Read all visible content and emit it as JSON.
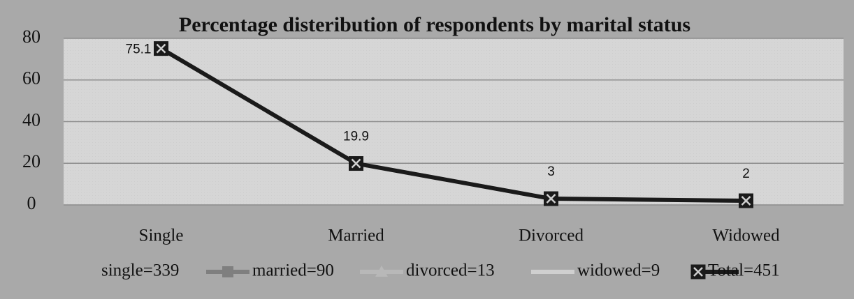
{
  "chart_data": {
    "type": "line",
    "title": "Percentage disteribution of respondents by marital status",
    "categories": [
      "Single",
      "Married",
      "Divorced",
      "Widowed"
    ],
    "series": [
      {
        "name": "single=339",
        "color": "#c8c8c8",
        "values": [
          null,
          null,
          null,
          null
        ]
      },
      {
        "name": "married=90",
        "color": "#7f7f7f",
        "values": [
          null,
          null,
          null,
          null
        ]
      },
      {
        "name": "divorced=13",
        "color": "#b8b8b8",
        "values": [
          null,
          null,
          null,
          null
        ]
      },
      {
        "name": "widowed=9",
        "color": "#cfcfcf",
        "values": [
          null,
          null,
          null,
          null
        ]
      },
      {
        "name": "Total=451",
        "color": "#1a1a1a",
        "values": [
          75.1,
          19.9,
          3,
          2
        ]
      }
    ],
    "ylim": [
      0,
      80
    ],
    "yticks": [
      0,
      20,
      40,
      60,
      80
    ],
    "grid": true,
    "legend": "bottom"
  }
}
